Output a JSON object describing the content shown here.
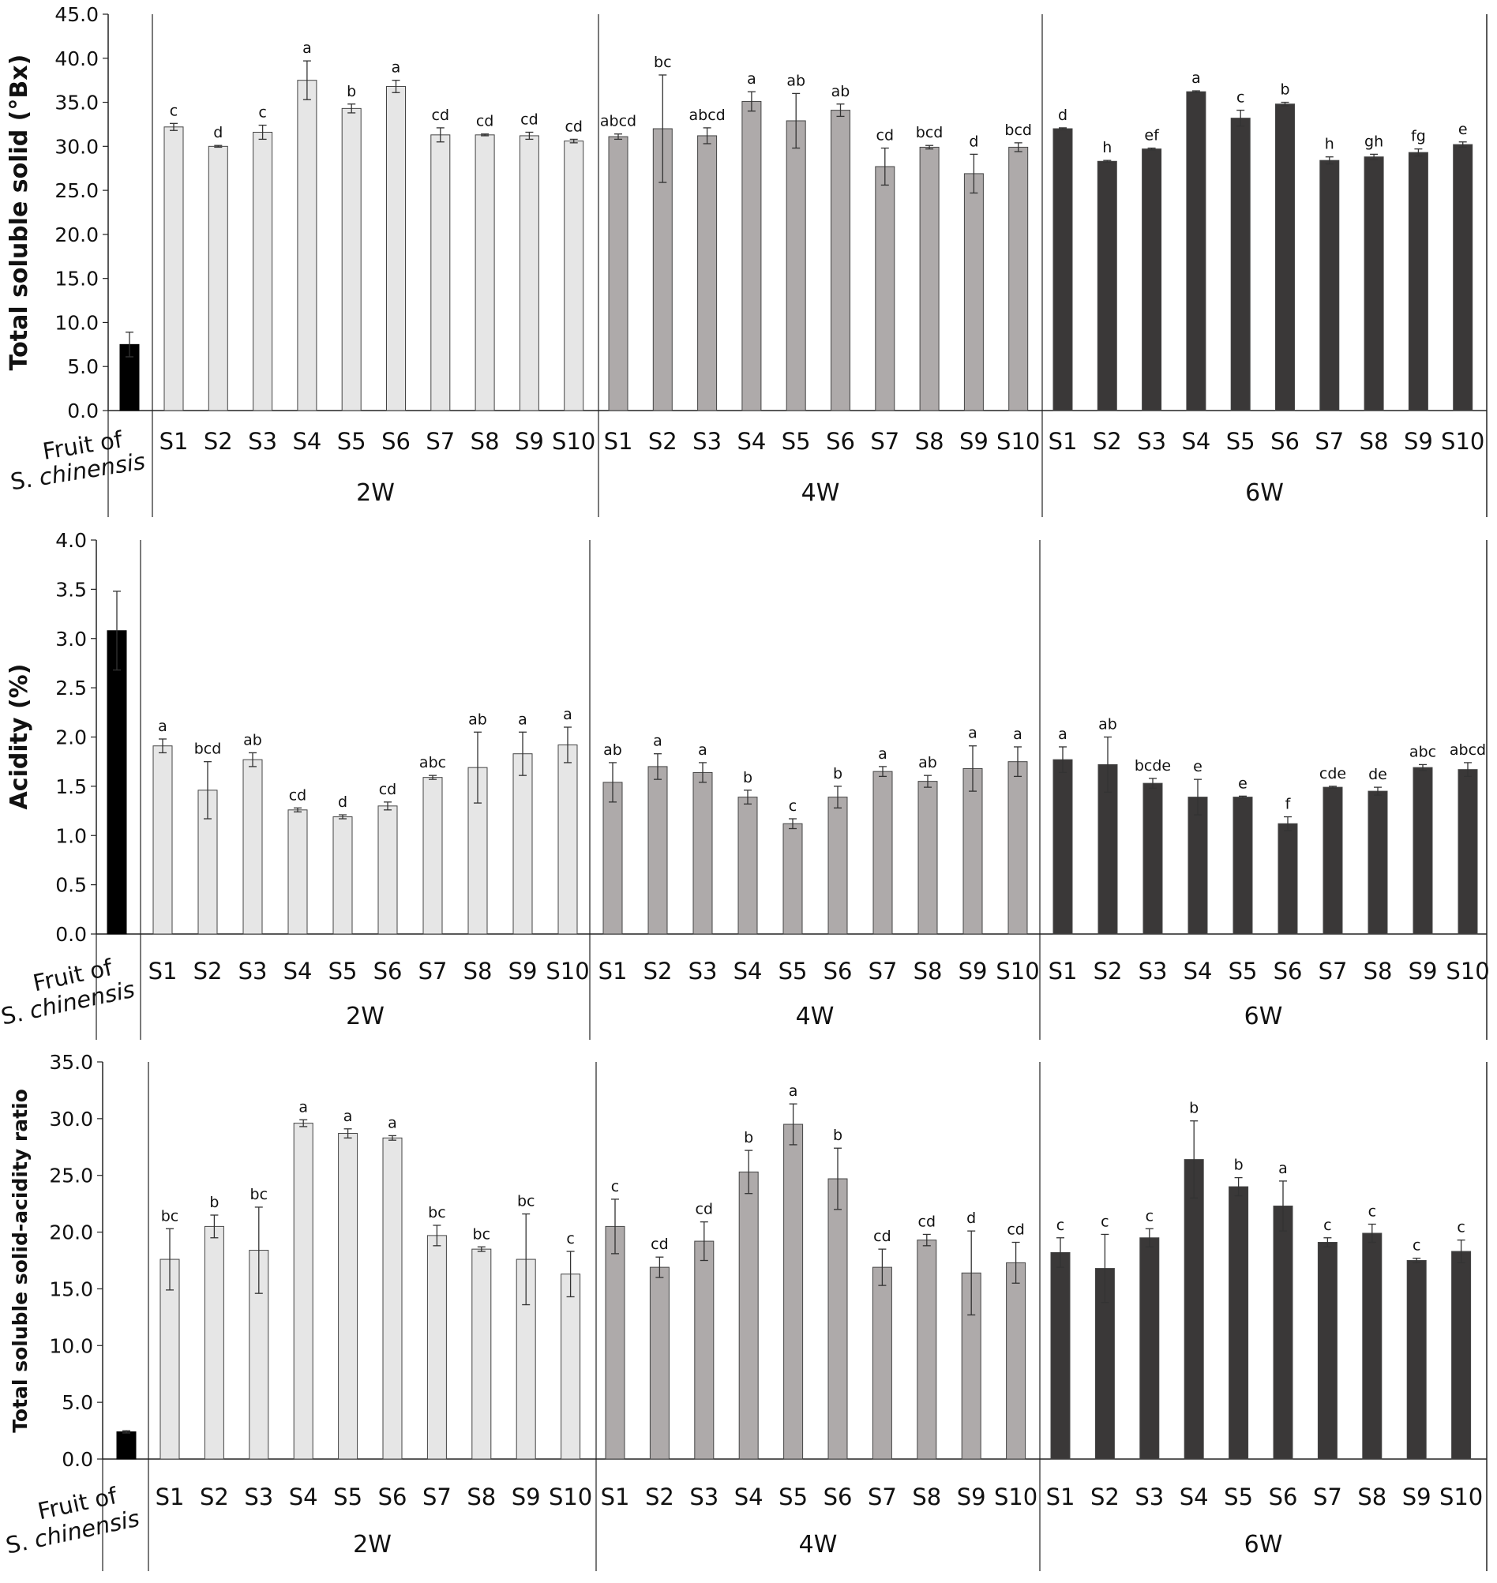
{
  "chart_data": [
    {
      "type": "bar",
      "ylabel": "Total soluble solid (°Bx)",
      "ylim": [
        0,
        45
      ],
      "yticks": [
        "0.0",
        "5.0",
        "10.0",
        "15.0",
        "20.0",
        "25.0",
        "30.0",
        "35.0",
        "40.0",
        "45.0"
      ],
      "control": {
        "label_line1": "Fruit of",
        "label_line2": "S. chinensis",
        "value": 7.5,
        "error": 1.4,
        "color": "#000000"
      },
      "groups": [
        {
          "name": "2W",
          "color": "#e6e6e6",
          "categories": [
            "S1",
            "S2",
            "S3",
            "S4",
            "S5",
            "S6",
            "S7",
            "S8",
            "S9",
            "S10"
          ],
          "values": [
            32.2,
            30.0,
            31.6,
            37.5,
            34.3,
            36.8,
            31.3,
            31.3,
            31.2,
            30.6
          ],
          "errors": [
            0.4,
            0.1,
            0.8,
            2.2,
            0.5,
            0.7,
            0.8,
            0.1,
            0.4,
            0.2
          ],
          "letters": [
            "c",
            "d",
            "c",
            "a",
            "b",
            "a",
            "cd",
            "cd",
            "cd",
            "cd"
          ]
        },
        {
          "name": "4W",
          "color": "#aeaaaa",
          "categories": [
            "S1",
            "S2",
            "S3",
            "S4",
            "S5",
            "S6",
            "S7",
            "S8",
            "S9",
            "S10"
          ],
          "values": [
            31.1,
            32.0,
            31.2,
            35.1,
            32.9,
            34.1,
            27.7,
            29.9,
            26.9,
            29.9
          ],
          "errors": [
            0.3,
            6.1,
            0.9,
            1.1,
            3.1,
            0.7,
            2.1,
            0.2,
            2.2,
            0.5
          ],
          "letters": [
            "abcd",
            "bc",
            "abcd",
            "a",
            "ab",
            "ab",
            "cd",
            "bcd",
            "d",
            "bcd"
          ]
        },
        {
          "name": "6W",
          "color": "#3a3838",
          "categories": [
            "S1",
            "S2",
            "S3",
            "S4",
            "S5",
            "S6",
            "S7",
            "S8",
            "S9",
            "S10"
          ],
          "values": [
            32.0,
            28.3,
            29.7,
            36.2,
            33.2,
            34.8,
            28.4,
            28.8,
            29.3,
            30.2
          ],
          "errors": [
            0.1,
            0.1,
            0.1,
            0.1,
            0.9,
            0.2,
            0.4,
            0.3,
            0.4,
            0.3
          ],
          "letters": [
            "d",
            "h",
            "ef",
            "a",
            "c",
            "b",
            "h",
            "gh",
            "fg",
            "e"
          ]
        }
      ]
    },
    {
      "type": "bar",
      "ylabel": "Acidity (%)",
      "ylim": [
        0,
        4
      ],
      "yticks": [
        "0.0",
        "0.5",
        "1.0",
        "1.5",
        "2.0",
        "2.5",
        "3.0",
        "3.5",
        "4.0"
      ],
      "control": {
        "label_line1": "Fruit of",
        "label_line2": "S. chinensis",
        "value": 3.08,
        "error": 0.4,
        "color": "#000000"
      },
      "groups": [
        {
          "name": "2W",
          "color": "#e6e6e6",
          "categories": [
            "S1",
            "S2",
            "S3",
            "S4",
            "S5",
            "S6",
            "S7",
            "S8",
            "S9",
            "S10"
          ],
          "values": [
            1.91,
            1.46,
            1.77,
            1.26,
            1.19,
            1.3,
            1.59,
            1.69,
            1.83,
            1.92
          ],
          "errors": [
            0.07,
            0.29,
            0.07,
            0.02,
            0.02,
            0.04,
            0.02,
            0.36,
            0.22,
            0.18
          ],
          "letters": [
            "a",
            "bcd",
            "ab",
            "cd",
            "d",
            "cd",
            "abc",
            "ab",
            "a",
            "a"
          ]
        },
        {
          "name": "4W",
          "color": "#aeaaaa",
          "categories": [
            "S1",
            "S2",
            "S3",
            "S4",
            "S5",
            "S6",
            "S7",
            "S8",
            "S9",
            "S10"
          ],
          "values": [
            1.54,
            1.7,
            1.64,
            1.39,
            1.12,
            1.39,
            1.65,
            1.55,
            1.68,
            1.75
          ],
          "errors": [
            0.2,
            0.13,
            0.1,
            0.07,
            0.05,
            0.11,
            0.05,
            0.06,
            0.23,
            0.15
          ],
          "letters": [
            "ab",
            "a",
            "a",
            "b",
            "c",
            "b",
            "a",
            "ab",
            "a",
            "a"
          ]
        },
        {
          "name": "6W",
          "color": "#3a3838",
          "categories": [
            "S1",
            "S2",
            "S3",
            "S4",
            "S5",
            "S6",
            "S7",
            "S8",
            "S9",
            "S10"
          ],
          "values": [
            1.77,
            1.72,
            1.53,
            1.39,
            1.39,
            1.12,
            1.49,
            1.45,
            1.69,
            1.67
          ],
          "errors": [
            0.13,
            0.28,
            0.05,
            0.18,
            0.01,
            0.07,
            0.01,
            0.04,
            0.03,
            0.07
          ],
          "letters": [
            "a",
            "ab",
            "bcde",
            "e",
            "e",
            "f",
            "cde",
            "de",
            "abc",
            "abcd"
          ]
        }
      ]
    },
    {
      "type": "bar",
      "ylabel": "Total soluble solid-acidity ratio",
      "ylim": [
        0,
        35
      ],
      "yticks": [
        "0.0",
        "5.0",
        "10.0",
        "15.0",
        "20.0",
        "25.0",
        "30.0",
        "35.0"
      ],
      "control": {
        "label_line1": "Fruit of",
        "label_line2": "S. chinensis",
        "value": 2.4,
        "error": 0.1,
        "color": "#000000"
      },
      "groups": [
        {
          "name": "2W",
          "color": "#e6e6e6",
          "categories": [
            "S1",
            "S2",
            "S3",
            "S4",
            "S5",
            "S6",
            "S7",
            "S8",
            "S9",
            "S10"
          ],
          "values": [
            17.6,
            20.5,
            18.4,
            29.6,
            28.7,
            28.3,
            19.7,
            18.5,
            17.6,
            16.3
          ],
          "errors": [
            2.7,
            1.0,
            3.8,
            0.3,
            0.4,
            0.2,
            0.9,
            0.2,
            4.0,
            2.0
          ],
          "letters": [
            "bc",
            "b",
            "bc",
            "a",
            "a",
            "a",
            "bc",
            "bc",
            "bc",
            "c"
          ]
        },
        {
          "name": "4W",
          "color": "#aeaaaa",
          "categories": [
            "S1",
            "S2",
            "S3",
            "S4",
            "S5",
            "S6",
            "S7",
            "S8",
            "S9",
            "S10"
          ],
          "values": [
            20.5,
            16.9,
            19.2,
            25.3,
            29.5,
            24.7,
            16.9,
            19.3,
            16.4,
            17.3
          ],
          "errors": [
            2.4,
            0.9,
            1.7,
            1.9,
            1.8,
            2.7,
            1.6,
            0.5,
            3.7,
            1.8
          ],
          "letters": [
            "c",
            "cd",
            "cd",
            "b",
            "a",
            "b",
            "cd",
            "cd",
            "d",
            "cd"
          ]
        },
        {
          "name": "6W",
          "color": "#3a3838",
          "categories": [
            "S1",
            "S2",
            "S3",
            "S4",
            "S5",
            "S6",
            "S7",
            "S8",
            "S9",
            "S10"
          ],
          "values": [
            18.2,
            16.8,
            19.5,
            26.4,
            24.0,
            22.3,
            19.1,
            19.9,
            17.5,
            18.3
          ],
          "errors": [
            1.3,
            3.0,
            0.8,
            3.4,
            0.8,
            2.2,
            0.4,
            0.8,
            0.2,
            1.0
          ],
          "letters": [
            "c",
            "c",
            "c",
            "b",
            "b",
            "a",
            "c",
            "c",
            "c",
            "c"
          ]
        }
      ]
    }
  ]
}
